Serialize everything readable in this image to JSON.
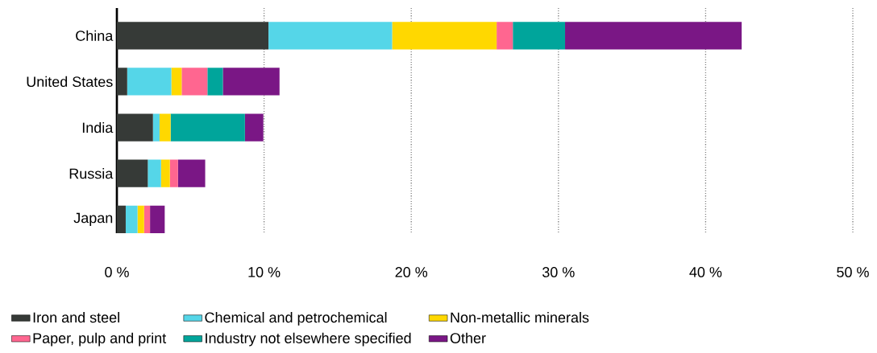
{
  "chart_data": {
    "type": "bar",
    "orientation": "horizontal",
    "stacked": true,
    "categories": [
      "China",
      "United States",
      "India",
      "Russia",
      "Japan"
    ],
    "series": [
      {
        "name": "Iron and steel",
        "color": "#363a37",
        "values": [
          10.3,
          0.7,
          2.45,
          2.1,
          0.6
        ]
      },
      {
        "name": "Chemical and petrochemical",
        "color": "#55d6e8",
        "values": [
          8.4,
          3.0,
          0.45,
          0.9,
          0.8
        ]
      },
      {
        "name": "Non-metallic minerals",
        "color": "#ffd800",
        "values": [
          7.1,
          0.7,
          0.75,
          0.6,
          0.45
        ]
      },
      {
        "name": "Paper, pulp and print",
        "color": "#ff6690",
        "values": [
          1.1,
          1.75,
          0,
          0.55,
          0.4
        ]
      },
      {
        "name": "Industry not elsewhere specified",
        "color": "#00a59b",
        "values": [
          3.55,
          1.05,
          5.05,
          0,
          0
        ]
      },
      {
        "name": "Other",
        "color": "#7a1785",
        "values": [
          12.0,
          3.85,
          1.25,
          1.85,
          1.0
        ]
      }
    ],
    "xlim": [
      0,
      50
    ],
    "xticks": [
      {
        "value": 0,
        "label": "0 %"
      },
      {
        "value": 10,
        "label": "10 %"
      },
      {
        "value": 20,
        "label": "20 %"
      },
      {
        "value": 30,
        "label": "30 %"
      },
      {
        "value": 40,
        "label": "40 %"
      },
      {
        "value": 50,
        "label": "50 %"
      }
    ],
    "grid": "x",
    "legend": "bottom"
  }
}
